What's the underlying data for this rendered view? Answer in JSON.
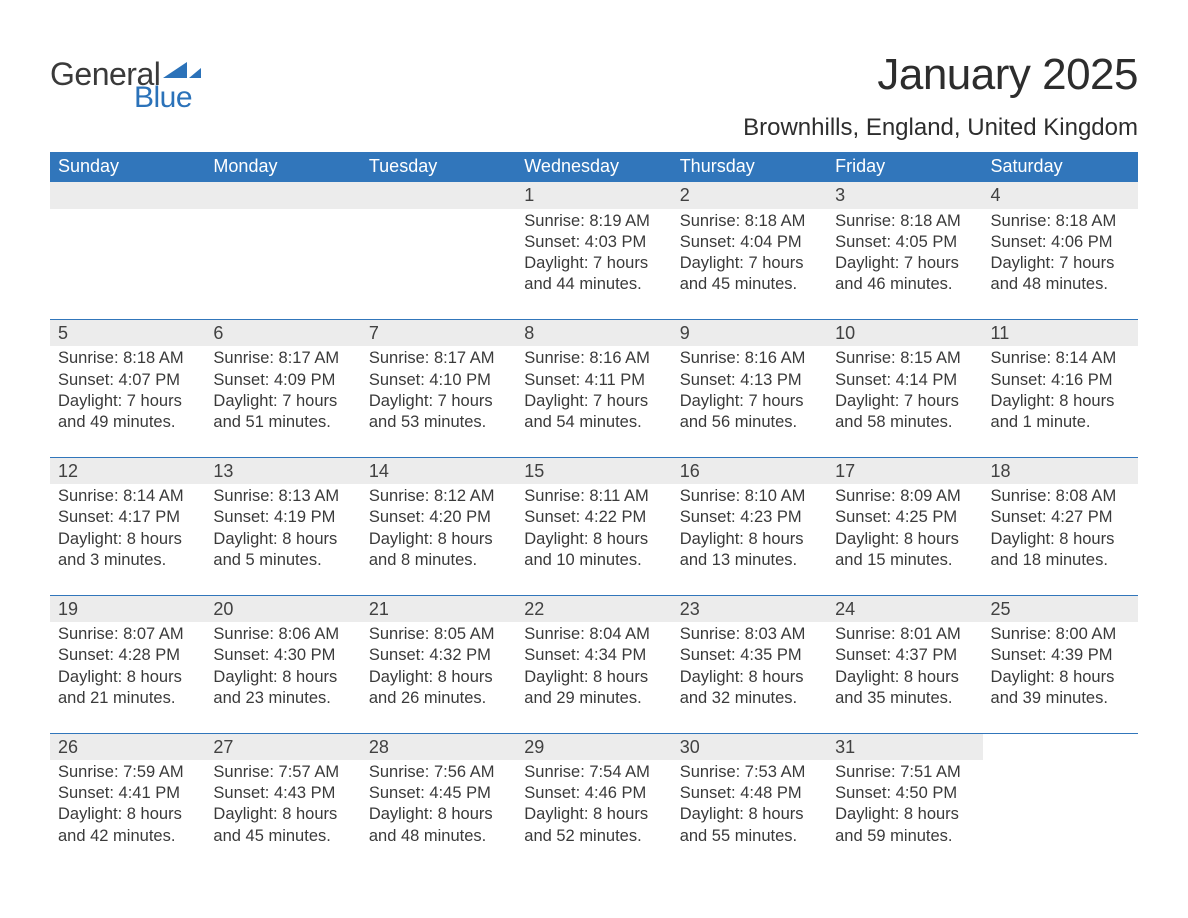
{
  "brand": {
    "word1": "General",
    "word2": "Blue",
    "text_color": "#3a3a3a",
    "accent_color": "#2b72b9"
  },
  "header": {
    "month_title": "January 2025",
    "location": "Brownhills, England, United Kingdom"
  },
  "calendar": {
    "header_bg": "#3176bb",
    "header_fg": "#ffffff",
    "daynum_bg": "#ececec",
    "rule_color": "#3176bb",
    "weekdays": [
      "Sunday",
      "Monday",
      "Tuesday",
      "Wednesday",
      "Thursday",
      "Friday",
      "Saturday"
    ],
    "start_weekday_index": 3,
    "days": [
      {
        "n": 1,
        "sunrise": "8:19 AM",
        "sunset": "4:03 PM",
        "daylight": "7 hours and 44 minutes."
      },
      {
        "n": 2,
        "sunrise": "8:18 AM",
        "sunset": "4:04 PM",
        "daylight": "7 hours and 45 minutes."
      },
      {
        "n": 3,
        "sunrise": "8:18 AM",
        "sunset": "4:05 PM",
        "daylight": "7 hours and 46 minutes."
      },
      {
        "n": 4,
        "sunrise": "8:18 AM",
        "sunset": "4:06 PM",
        "daylight": "7 hours and 48 minutes."
      },
      {
        "n": 5,
        "sunrise": "8:18 AM",
        "sunset": "4:07 PM",
        "daylight": "7 hours and 49 minutes."
      },
      {
        "n": 6,
        "sunrise": "8:17 AM",
        "sunset": "4:09 PM",
        "daylight": "7 hours and 51 minutes."
      },
      {
        "n": 7,
        "sunrise": "8:17 AM",
        "sunset": "4:10 PM",
        "daylight": "7 hours and 53 minutes."
      },
      {
        "n": 8,
        "sunrise": "8:16 AM",
        "sunset": "4:11 PM",
        "daylight": "7 hours and 54 minutes."
      },
      {
        "n": 9,
        "sunrise": "8:16 AM",
        "sunset": "4:13 PM",
        "daylight": "7 hours and 56 minutes."
      },
      {
        "n": 10,
        "sunrise": "8:15 AM",
        "sunset": "4:14 PM",
        "daylight": "7 hours and 58 minutes."
      },
      {
        "n": 11,
        "sunrise": "8:14 AM",
        "sunset": "4:16 PM",
        "daylight": "8 hours and 1 minute."
      },
      {
        "n": 12,
        "sunrise": "8:14 AM",
        "sunset": "4:17 PM",
        "daylight": "8 hours and 3 minutes."
      },
      {
        "n": 13,
        "sunrise": "8:13 AM",
        "sunset": "4:19 PM",
        "daylight": "8 hours and 5 minutes."
      },
      {
        "n": 14,
        "sunrise": "8:12 AM",
        "sunset": "4:20 PM",
        "daylight": "8 hours and 8 minutes."
      },
      {
        "n": 15,
        "sunrise": "8:11 AM",
        "sunset": "4:22 PM",
        "daylight": "8 hours and 10 minutes."
      },
      {
        "n": 16,
        "sunrise": "8:10 AM",
        "sunset": "4:23 PM",
        "daylight": "8 hours and 13 minutes."
      },
      {
        "n": 17,
        "sunrise": "8:09 AM",
        "sunset": "4:25 PM",
        "daylight": "8 hours and 15 minutes."
      },
      {
        "n": 18,
        "sunrise": "8:08 AM",
        "sunset": "4:27 PM",
        "daylight": "8 hours and 18 minutes."
      },
      {
        "n": 19,
        "sunrise": "8:07 AM",
        "sunset": "4:28 PM",
        "daylight": "8 hours and 21 minutes."
      },
      {
        "n": 20,
        "sunrise": "8:06 AM",
        "sunset": "4:30 PM",
        "daylight": "8 hours and 23 minutes."
      },
      {
        "n": 21,
        "sunrise": "8:05 AM",
        "sunset": "4:32 PM",
        "daylight": "8 hours and 26 minutes."
      },
      {
        "n": 22,
        "sunrise": "8:04 AM",
        "sunset": "4:34 PM",
        "daylight": "8 hours and 29 minutes."
      },
      {
        "n": 23,
        "sunrise": "8:03 AM",
        "sunset": "4:35 PM",
        "daylight": "8 hours and 32 minutes."
      },
      {
        "n": 24,
        "sunrise": "8:01 AM",
        "sunset": "4:37 PM",
        "daylight": "8 hours and 35 minutes."
      },
      {
        "n": 25,
        "sunrise": "8:00 AM",
        "sunset": "4:39 PM",
        "daylight": "8 hours and 39 minutes."
      },
      {
        "n": 26,
        "sunrise": "7:59 AM",
        "sunset": "4:41 PM",
        "daylight": "8 hours and 42 minutes."
      },
      {
        "n": 27,
        "sunrise": "7:57 AM",
        "sunset": "4:43 PM",
        "daylight": "8 hours and 45 minutes."
      },
      {
        "n": 28,
        "sunrise": "7:56 AM",
        "sunset": "4:45 PM",
        "daylight": "8 hours and 48 minutes."
      },
      {
        "n": 29,
        "sunrise": "7:54 AM",
        "sunset": "4:46 PM",
        "daylight": "8 hours and 52 minutes."
      },
      {
        "n": 30,
        "sunrise": "7:53 AM",
        "sunset": "4:48 PM",
        "daylight": "8 hours and 55 minutes."
      },
      {
        "n": 31,
        "sunrise": "7:51 AM",
        "sunset": "4:50 PM",
        "daylight": "8 hours and 59 minutes."
      }
    ],
    "labels": {
      "sunrise": "Sunrise:",
      "sunset": "Sunset:",
      "daylight": "Daylight:"
    }
  }
}
